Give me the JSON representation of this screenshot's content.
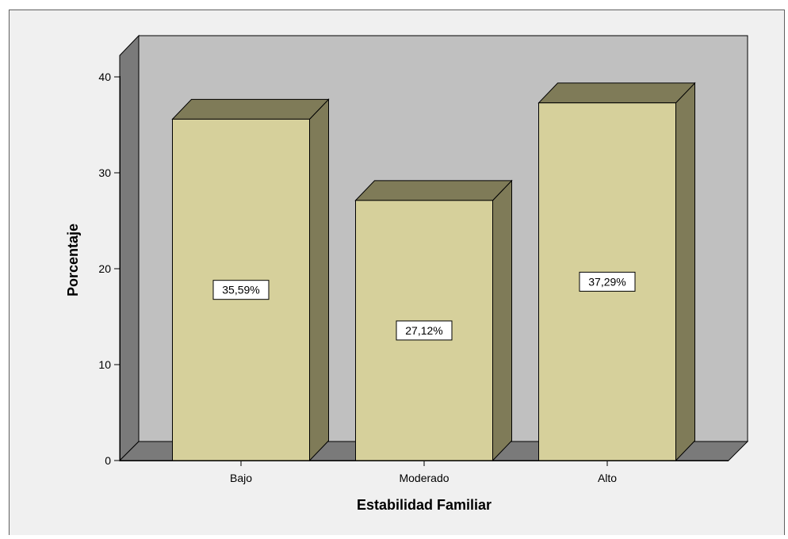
{
  "chart_data": {
    "type": "bar",
    "title": "",
    "xlabel": "Estabilidad Familiar",
    "ylabel": "Porcentaje",
    "categories": [
      "Bajo",
      "Moderado",
      "Alto"
    ],
    "values": [
      35.59,
      27.12,
      37.29
    ],
    "data_labels": [
      "35,59%",
      "27,12%",
      "37,29%"
    ],
    "ylim": [
      0,
      40
    ],
    "yticks": [
      0,
      10,
      20,
      30,
      40
    ],
    "grid": false,
    "legend": "none",
    "colors": {
      "bar_front": "#d6d09b",
      "bar_side": "#7f7b58",
      "wall": "#c0c0c0",
      "floor_left_wall": "#7a7a7a",
      "chart_background": "#f0f0f0",
      "label_box": "#ffffff"
    }
  }
}
